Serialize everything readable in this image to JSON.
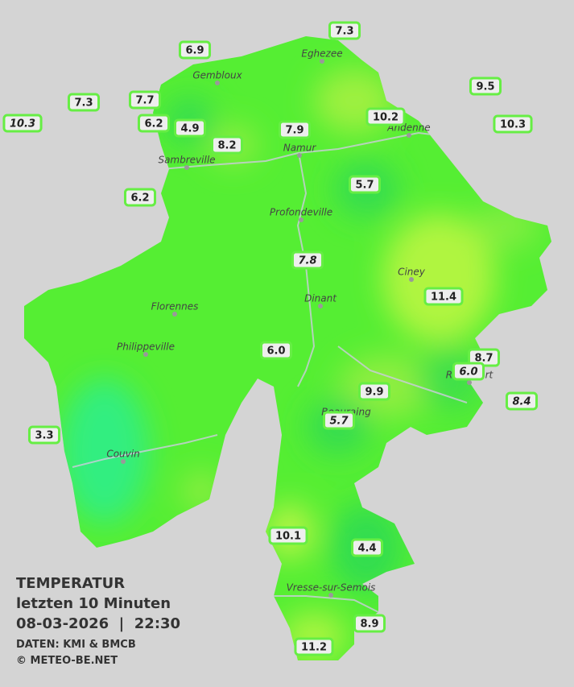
{
  "header": {
    "title": "TEMPERATUR",
    "subtitle": "letzten 10 Minuten",
    "datetime": "08-03-2026  |  22:30",
    "source": "DATEN: KMI & BMCB",
    "copyright": "© METEO-BE.NET"
  },
  "cities": [
    "Eghezee",
    "Gembloux",
    "Andenne",
    "Namur",
    "Sambreville",
    "Profondeville",
    "Ciney",
    "Dinant",
    "Florennes",
    "Philippeville",
    "Rochefort",
    "Beauraing",
    "Couvin",
    "Vresse-sur-Semois"
  ],
  "stations": [
    {
      "value": "6.9",
      "italic": false
    },
    {
      "value": "7.3",
      "italic": false
    },
    {
      "value": "9.5",
      "italic": false
    },
    {
      "value": "7.3",
      "italic": false
    },
    {
      "value": "7.7",
      "italic": false
    },
    {
      "value": "10.3",
      "italic": true
    },
    {
      "value": "6.2",
      "italic": false
    },
    {
      "value": "4.9",
      "italic": false
    },
    {
      "value": "8.2",
      "italic": false
    },
    {
      "value": "7.9",
      "italic": false
    },
    {
      "value": "10.2",
      "italic": false
    },
    {
      "value": "10.3",
      "italic": false
    },
    {
      "value": "5.7",
      "italic": false
    },
    {
      "value": "6.2",
      "italic": false
    },
    {
      "value": "7.8",
      "italic": true
    },
    {
      "value": "11.4",
      "italic": false
    },
    {
      "value": "6.0",
      "italic": false
    },
    {
      "value": "8.7",
      "italic": false
    },
    {
      "value": "6.0",
      "italic": true
    },
    {
      "value": "8.4",
      "italic": true
    },
    {
      "value": "9.9",
      "italic": false
    },
    {
      "value": "5.7",
      "italic": true
    },
    {
      "value": "3.3",
      "italic": false
    },
    {
      "value": "10.1",
      "italic": false
    },
    {
      "value": "4.4",
      "italic": false
    },
    {
      "value": "8.9",
      "italic": false
    },
    {
      "value": "11.2",
      "italic": false
    }
  ]
}
